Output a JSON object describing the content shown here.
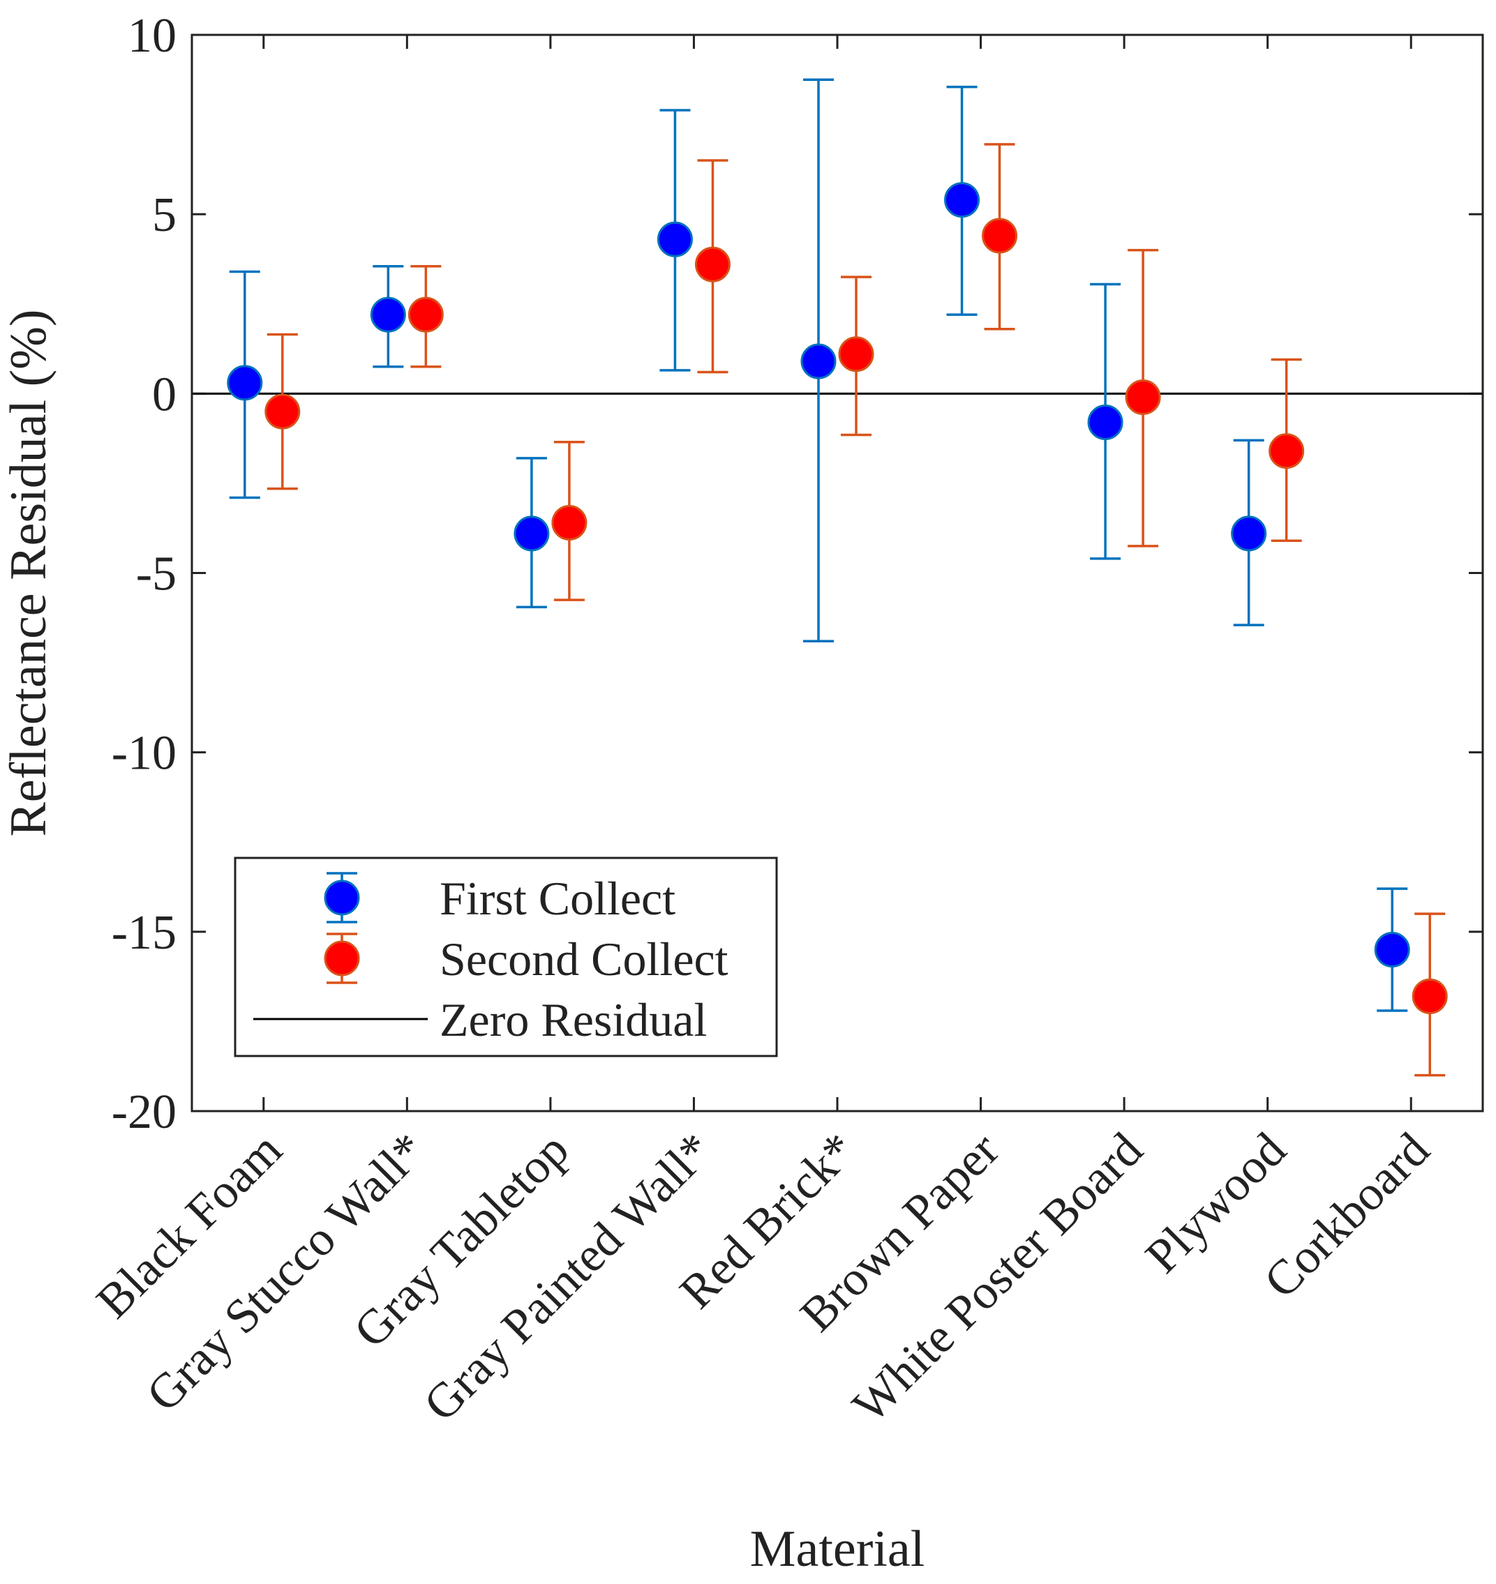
{
  "chart_data": {
    "type": "errorbar-scatter",
    "xlabel": "Material",
    "ylabel": "Reflectance Residual (%)",
    "ylim": [
      -20,
      10
    ],
    "yticks": [
      10,
      5,
      0,
      -5,
      -10,
      -15,
      -20
    ],
    "ytick_labels": [
      "10",
      "5",
      "0",
      "-5",
      "-10",
      "-15",
      "-20"
    ],
    "categories": [
      "Black Foam",
      "Gray Stucco Wall*",
      "Gray Tabletop",
      "Gray Painted Wall*",
      "Red Brick*",
      "Brown Paper",
      "White Poster Board",
      "Plywood",
      "Corkboard"
    ],
    "series": [
      {
        "name": "First Collect",
        "marker_color": "#0000ff",
        "errorbar_color": "#0072bd",
        "values": [
          0.3,
          2.2,
          -3.9,
          4.3,
          0.9,
          5.4,
          -0.8,
          -3.9,
          -15.5
        ],
        "lower": [
          -2.9,
          0.75,
          -5.95,
          0.65,
          -6.9,
          2.2,
          -4.6,
          -6.45,
          -17.2
        ],
        "upper": [
          3.4,
          3.55,
          -1.8,
          7.9,
          8.75,
          8.55,
          3.05,
          -1.3,
          -13.8
        ]
      },
      {
        "name": "Second Collect",
        "marker_color": "#ff0000",
        "errorbar_color": "#d95319",
        "values": [
          -0.5,
          2.2,
          -3.6,
          3.6,
          1.1,
          4.4,
          -0.1,
          -1.6,
          -16.8
        ],
        "lower": [
          -2.65,
          0.75,
          -5.75,
          0.6,
          -1.15,
          1.8,
          -4.25,
          -4.1,
          -19.0
        ],
        "upper": [
          1.65,
          3.55,
          -1.35,
          6.5,
          3.25,
          6.95,
          4.0,
          0.95,
          -14.5
        ]
      }
    ],
    "reference_line": {
      "name": "Zero Residual",
      "y": 0,
      "color": "#000000"
    },
    "legend": {
      "position": "bottom-left",
      "entries": [
        "First Collect",
        "Second Collect",
        "Zero Residual"
      ]
    }
  }
}
